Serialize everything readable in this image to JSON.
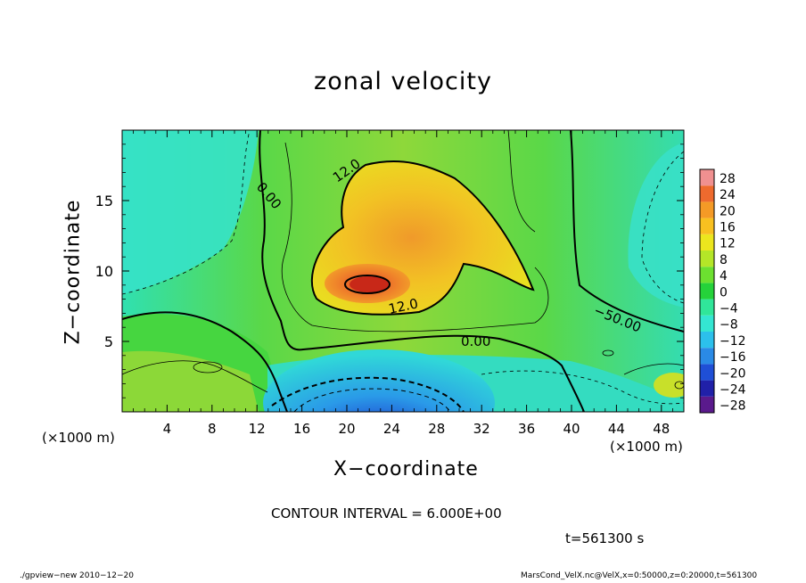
{
  "chart_data": {
    "type": "heatmap",
    "title": "zonal velocity",
    "xlabel": "X−coordinate",
    "ylabel": "Z−coordinate",
    "x_unit_left": "(×1000 m)",
    "x_unit_right": "(×1000 m)",
    "xlim": [
      0,
      50
    ],
    "ylim": [
      0,
      20
    ],
    "x_ticks": [
      4,
      8,
      12,
      16,
      20,
      24,
      28,
      32,
      36,
      40,
      44,
      48
    ],
    "x_tick_labels": [
      "4",
      "8",
      "12",
      "16",
      "20",
      "24",
      "28",
      "32",
      "36",
      "40",
      "44",
      "48"
    ],
    "y_ticks": [
      5,
      10,
      15
    ],
    "y_tick_labels": [
      "5",
      "10",
      "15"
    ],
    "colorbar": {
      "levels": [
        -28,
        -24,
        -20,
        -16,
        -12,
        -8,
        -4,
        0,
        4,
        8,
        12,
        16,
        20,
        24,
        28
      ],
      "labels": [
        "28",
        "24",
        "20",
        "16",
        "12",
        "8",
        "4",
        "0",
        "−4",
        "−8",
        "−12",
        "−16",
        "−20",
        "−24",
        "−28"
      ],
      "colors": [
        "#5a1a8c",
        "#2020a8",
        "#1f4fd6",
        "#2a8ae6",
        "#2cc0ec",
        "#34e6d2",
        "#30e69a",
        "#25d23a",
        "#6ce030",
        "#b4e628",
        "#ece61e",
        "#f8c020",
        "#f49a26",
        "#ee6a2e",
        "#f09090"
      ]
    },
    "contour_labels": [
      "12.0",
      "0.00",
      "12.0",
      "0.00",
      "−50.00"
    ],
    "contour_interval_text": "CONTOUR INTERVAL = 6.000E+00"
  },
  "time_label": "t=561300 s",
  "footer_left": "./gpview−new   2010−12−20",
  "footer_right": "MarsCond_VelX.nc@VelX,x=0:50000,z=0:20000,t=561300"
}
